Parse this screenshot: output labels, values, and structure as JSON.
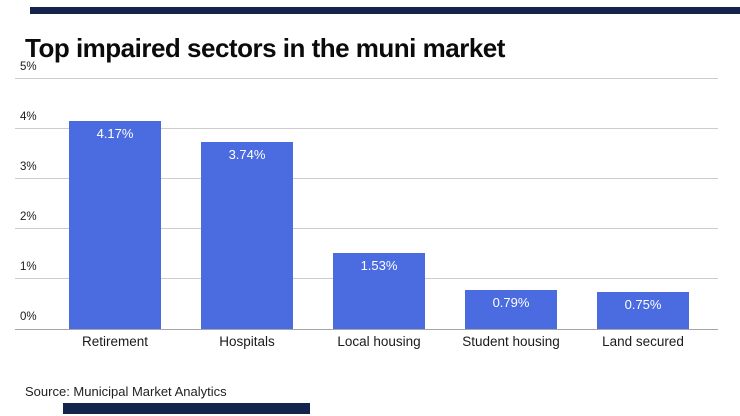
{
  "branding": {
    "accent_color": "#14244c"
  },
  "header": {
    "title": "Top impaired sectors in the muni market"
  },
  "chart_data": {
    "type": "bar",
    "title": "Top impaired sectors in the muni market",
    "categories": [
      "Retirement",
      "Hospitals",
      "Local housing",
      "Student housing",
      "Land secured"
    ],
    "values": [
      4.17,
      3.74,
      1.53,
      0.79,
      0.75
    ],
    "value_labels": [
      "4.17%",
      "3.74%",
      "1.53%",
      "0.79%",
      "0.75%"
    ],
    "xlabel": "",
    "ylabel": "",
    "ylim": [
      0,
      5
    ],
    "yticks": [
      0,
      1,
      2,
      3,
      4,
      5
    ],
    "ytick_labels": [
      "0%",
      "1%",
      "2%",
      "3%",
      "4%",
      "5%"
    ],
    "grid": true,
    "legend": false,
    "bar_color": "#4a6ce0",
    "value_label_color": "#ffffff",
    "gridline_color": "#cccccc"
  },
  "footer": {
    "source": "Source: Municipal Market Analytics"
  }
}
